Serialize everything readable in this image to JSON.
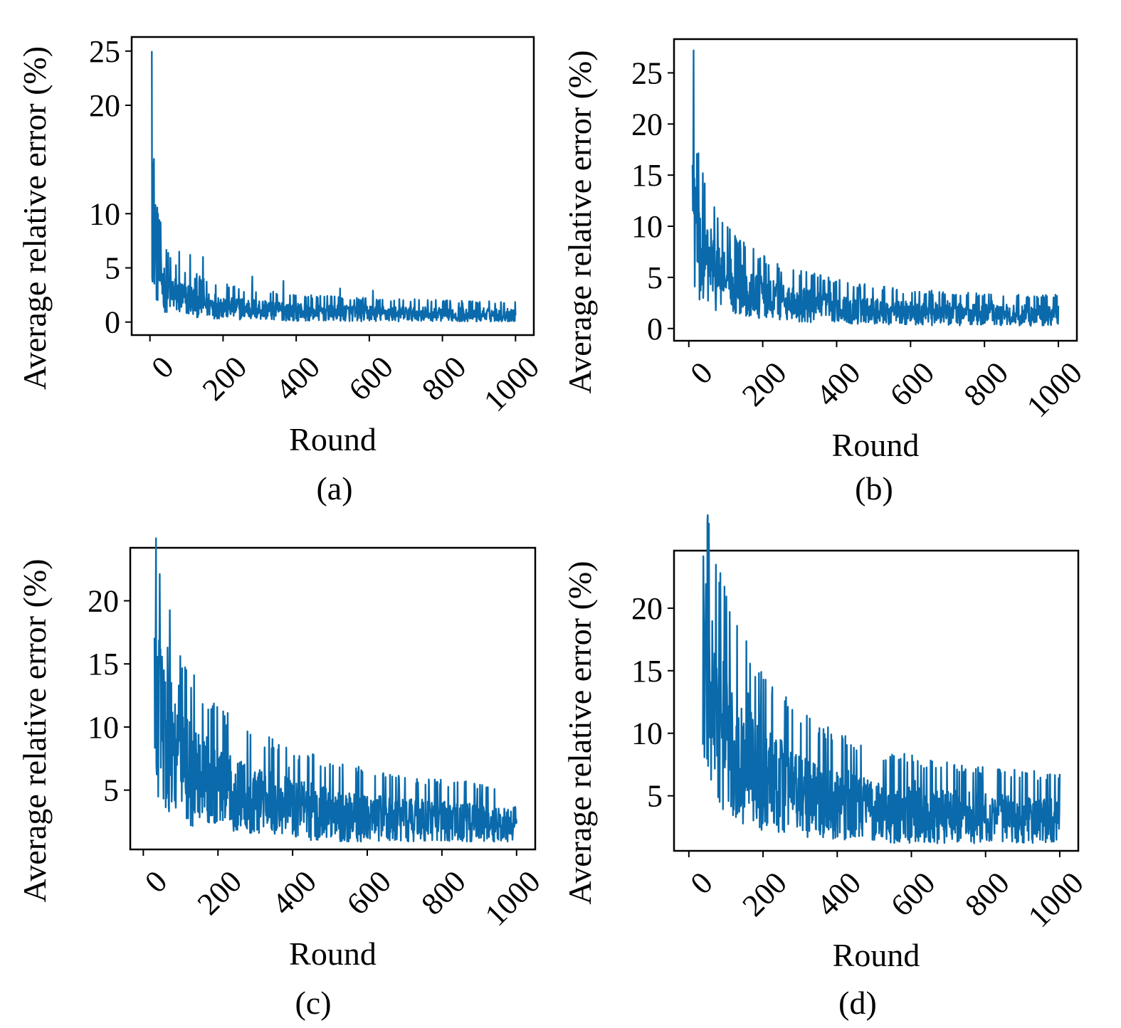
{
  "line_color": "#0a6aab",
  "chart_data": [
    {
      "type": "line",
      "caption": "(a)",
      "xlabel": "Round",
      "ylabel": "Average relative error (%)",
      "xlim": [
        -50,
        1050
      ],
      "ylim": [
        -1.2,
        26.3
      ],
      "xticks": [
        0,
        200,
        400,
        600,
        800,
        1000
      ],
      "yticks": [
        0,
        5,
        10,
        20,
        25
      ],
      "grid": false,
      "series": [
        {
          "x": [
            5,
            20,
            40,
            80,
            150,
            200,
            300,
            400,
            500,
            600,
            700,
            800,
            900,
            1000
          ],
          "y": [
            25,
            10,
            4,
            2.5,
            2,
            1.5,
            1.2,
            1.0,
            0.9,
            0.8,
            0.7,
            0.7,
            0.7,
            0.7
          ],
          "trend": [
            [
              5,
              12.0
            ],
            [
              10,
              8.0
            ],
            [
              20,
              5.0
            ],
            [
              40,
              3.2
            ],
            [
              80,
              2.3
            ],
            [
              150,
              1.7
            ],
            [
              250,
              1.3
            ],
            [
              400,
              1.0
            ],
            [
              600,
              0.85
            ],
            [
              800,
              0.75
            ],
            [
              1000,
              0.7
            ]
          ],
          "spikes": [
            [
              5,
              25.0
            ],
            [
              10,
              14.5
            ],
            [
              15,
              10.8
            ],
            [
              22,
              10.0
            ],
            [
              30,
              6.5
            ],
            [
              80,
              6.5
            ],
            [
              110,
              6.2
            ],
            [
              145,
              6.0
            ],
            [
              280,
              4.2
            ],
            [
              365,
              3.8
            ],
            [
              520,
              3.1
            ],
            [
              610,
              2.9
            ]
          ]
        }
      ]
    },
    {
      "type": "line",
      "caption": "(b)",
      "xlabel": "Round",
      "ylabel": "Average relative error (%)",
      "xlim": [
        -40,
        1050
      ],
      "ylim": [
        -1.2,
        28.3
      ],
      "xticks": [
        0,
        200,
        400,
        600,
        800,
        1000
      ],
      "yticks": [
        0,
        5,
        10,
        15,
        20,
        25
      ],
      "grid": false,
      "series": [
        {
          "x": [
            10,
            20,
            50,
            100,
            200,
            300,
            400,
            500,
            600,
            700,
            800,
            900,
            1000
          ],
          "y": [
            27,
            12,
            6.5,
            4.5,
            3.0,
            2.3,
            2.0,
            1.8,
            1.6,
            1.5,
            1.4,
            1.3,
            1.3
          ],
          "trend": [
            [
              10,
              14.0
            ],
            [
              15,
              10.5
            ],
            [
              25,
              8.0
            ],
            [
              50,
              6.3
            ],
            [
              100,
              4.8
            ],
            [
              150,
              3.9
            ],
            [
              200,
              3.2
            ],
            [
              300,
              2.5
            ],
            [
              400,
              2.1
            ],
            [
              500,
              1.8
            ],
            [
              600,
              1.6
            ],
            [
              800,
              1.45
            ],
            [
              1000,
              1.35
            ]
          ],
          "spikes": [
            [
              10,
              16.0
            ],
            [
              13,
              27.2
            ],
            [
              18,
              13.8
            ],
            [
              30,
              9.2
            ],
            [
              60,
              9.7
            ],
            [
              140,
              7.7
            ],
            [
              175,
              7.8
            ],
            [
              250,
              5.5
            ],
            [
              300,
              5.2
            ],
            [
              460,
              3.9
            ],
            [
              580,
              3.4
            ],
            [
              700,
              2.7
            ],
            [
              820,
              2.7
            ]
          ]
        }
      ]
    },
    {
      "type": "line",
      "caption": "(c)",
      "xlabel": "Round",
      "ylabel": "Average relative error (%)",
      "xlim": [
        -35,
        1050
      ],
      "ylim": [
        0.3,
        24.2
      ],
      "xticks": [
        0,
        200,
        400,
        600,
        800,
        1000
      ],
      "yticks": [
        5,
        10,
        15,
        20
      ],
      "grid": false,
      "series": [
        {
          "x": [
            30,
            50,
            100,
            150,
            200,
            300,
            400,
            500,
            600,
            700,
            800,
            900,
            1000
          ],
          "y": [
            17,
            11,
            7.5,
            6,
            5,
            4.3,
            3.7,
            3.3,
            3.0,
            2.8,
            2.6,
            2.5,
            2.3
          ],
          "trend": [
            [
              30,
              12.5
            ],
            [
              40,
              11.5
            ],
            [
              60,
              10.0
            ],
            [
              80,
              8.6
            ],
            [
              100,
              7.5
            ],
            [
              150,
              6.1
            ],
            [
              200,
              5.3
            ],
            [
              300,
              4.4
            ],
            [
              400,
              3.8
            ],
            [
              500,
              3.3
            ],
            [
              600,
              3.0
            ],
            [
              800,
              2.6
            ],
            [
              1000,
              2.3
            ]
          ],
          "spikes": [
            [
              33,
              17.3
            ],
            [
              45,
              15.5
            ],
            [
              55,
              14.5
            ],
            [
              65,
              16.3
            ],
            [
              95,
              13.3
            ],
            [
              170,
              9.2
            ],
            [
              280,
              6.5
            ],
            [
              390,
              6.8
            ],
            [
              440,
              5.1
            ],
            [
              520,
              4.2
            ],
            [
              720,
              3.8
            ],
            [
              900,
              3.5
            ]
          ]
        }
      ]
    },
    {
      "type": "line",
      "caption": "(d)",
      "xlabel": "Round",
      "ylabel": "Average relative error (%)",
      "xlim": [
        -40,
        1050
      ],
      "ylim": [
        0.6,
        24.6
      ],
      "xticks": [
        0,
        200,
        400,
        600,
        800,
        1000
      ],
      "yticks": [
        5,
        10,
        15,
        20
      ],
      "grid": false,
      "series": [
        {
          "x": [
            40,
            60,
            100,
            150,
            200,
            300,
            400,
            500,
            600,
            700,
            800,
            900,
            1000
          ],
          "y": [
            20,
            14,
            10,
            8,
            6.5,
            5.3,
            4.5,
            4.0,
            3.6,
            3.4,
            3.2,
            3.1,
            3.0
          ],
          "trend": [
            [
              38,
              16.5
            ],
            [
              50,
              14.0
            ],
            [
              70,
              12.0
            ],
            [
              100,
              10.2
            ],
            [
              150,
              8.2
            ],
            [
              200,
              6.8
            ],
            [
              300,
              5.4
            ],
            [
              400,
              4.6
            ],
            [
              500,
              4.0
            ],
            [
              600,
              3.7
            ],
            [
              800,
              3.3
            ],
            [
              1000,
              3.0
            ]
          ],
          "spikes": [
            [
              40,
              20.0
            ],
            [
              45,
              19.0
            ],
            [
              55,
              17.6
            ],
            [
              75,
              15.2
            ],
            [
              100,
              14.5
            ],
            [
              160,
              13.2
            ],
            [
              220,
              10.0
            ],
            [
              340,
              7.5
            ],
            [
              430,
              7.0
            ],
            [
              580,
              6.6
            ],
            [
              610,
              6.2
            ],
            [
              840,
              4.8
            ],
            [
              950,
              4.4
            ]
          ]
        }
      ]
    }
  ]
}
